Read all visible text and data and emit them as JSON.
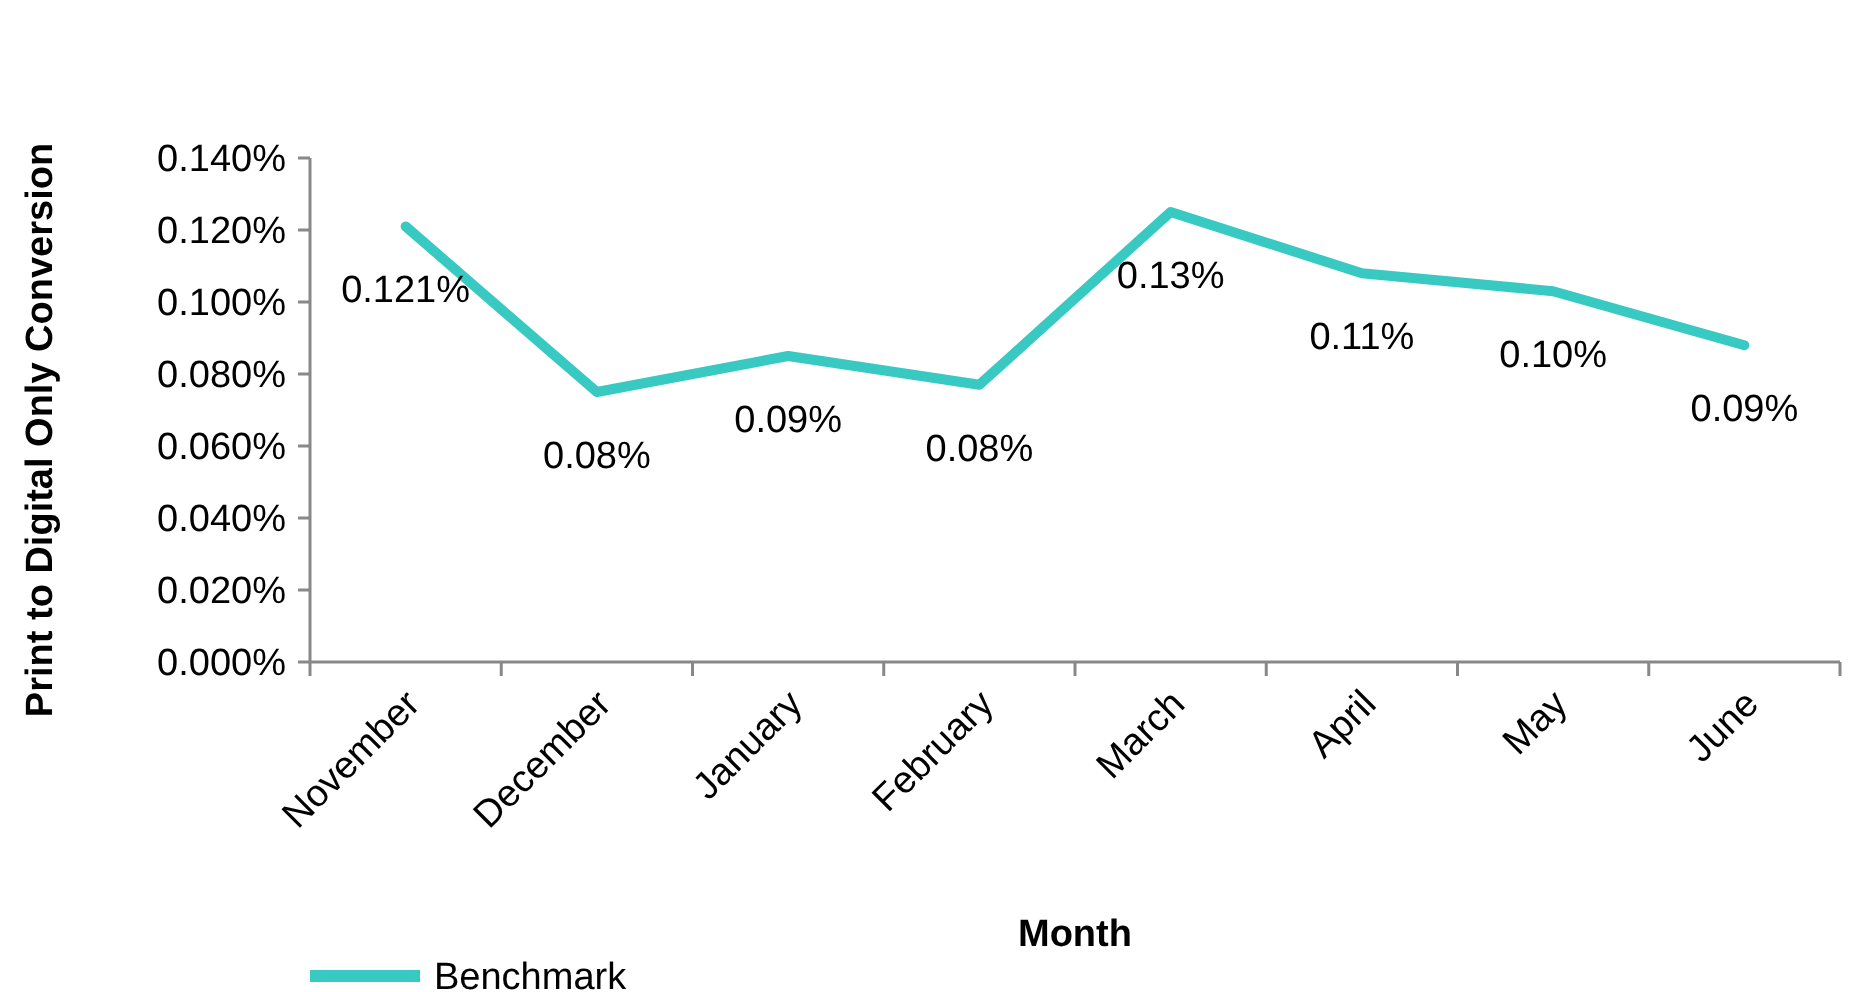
{
  "chart_data": {
    "type": "line",
    "xlabel": "Month",
    "ylabel": "Print to Digital Only Conversion",
    "categories": [
      "November",
      "December",
      "January",
      "February",
      "March",
      "April",
      "May",
      "June"
    ],
    "series": [
      {
        "name": "Benchmark",
        "color": "#38c9c3",
        "values": [
          0.121,
          0.075,
          0.085,
          0.077,
          0.125,
          0.108,
          0.103,
          0.088
        ],
        "value_labels": [
          "0.121%",
          "0.08%",
          "0.09%",
          "0.08%",
          "0.13%",
          "0.11%",
          "0.10%",
          "0.09%"
        ]
      }
    ],
    "ylim": [
      0,
      0.14
    ],
    "yticks": [
      {
        "value": 0,
        "label": "0.000%"
      },
      {
        "value": 0.02,
        "label": "0.020%"
      },
      {
        "value": 0.04,
        "label": "0.040%"
      },
      {
        "value": 0.06,
        "label": "0.060%"
      },
      {
        "value": 0.08,
        "label": "0.080%"
      },
      {
        "value": 0.1,
        "label": "0.100%"
      },
      {
        "value": 0.12,
        "label": "0.120%"
      },
      {
        "value": 0.14,
        "label": "0.140%"
      }
    ],
    "grid": false,
    "legend": "bottom left",
    "marker": "none",
    "line_style": "solid"
  }
}
